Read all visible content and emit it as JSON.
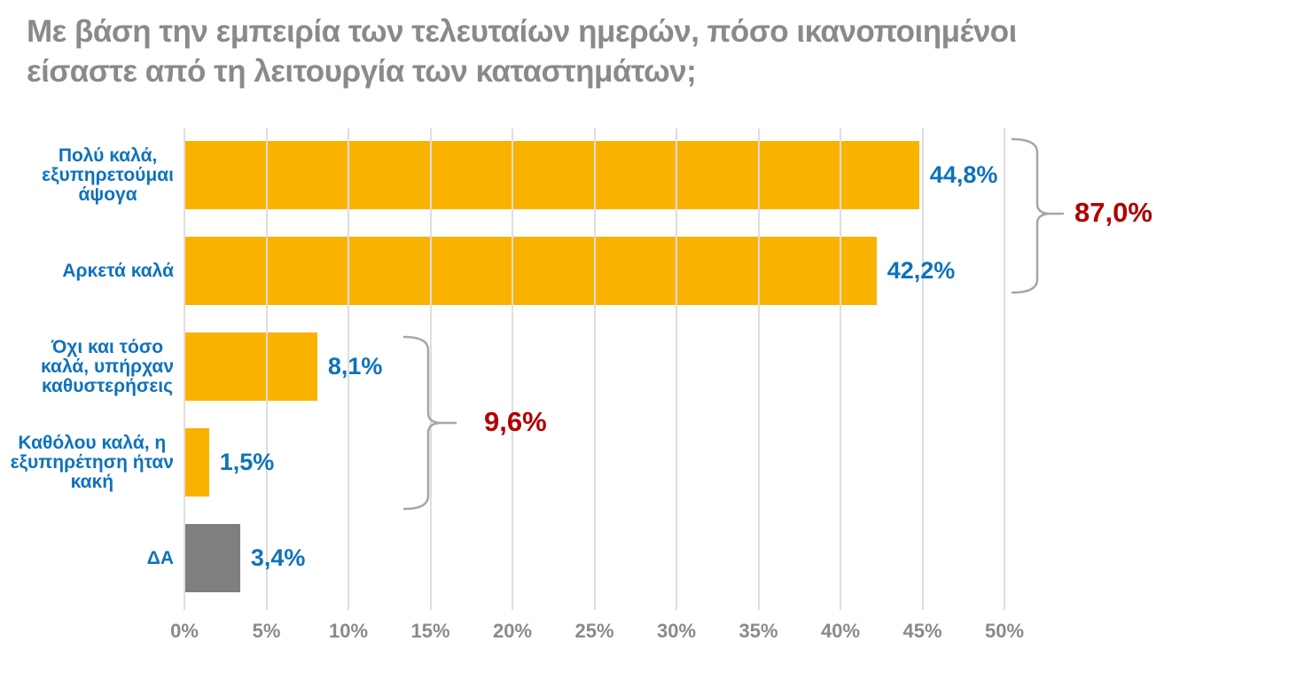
{
  "title": "Με βάση την εμπειρία των τελευταίων ημερών, πόσο ικανοποιημένοι\nείσαστε από τη λειτουργία των καταστημάτων;",
  "colors": {
    "bar_orange": "#F9B200",
    "bar_gray": "#7F7F7F",
    "value_blue": "#0F72BC",
    "group_red": "#B00000",
    "title_gray": "#8A8A8A",
    "brace_gray": "#A6A6A6",
    "gridline": "#DEDEDE"
  },
  "chart_data": {
    "type": "bar",
    "orientation": "horizontal",
    "title": "Με βάση την εμπειρία των τελευταίων ημερών, πόσο ικανοποιημένοι είσαστε από τη λειτουργία των καταστημάτων;",
    "xlabel": "",
    "ylabel": "",
    "x_axis": {
      "min": 0,
      "max": 50,
      "grid": true,
      "ticks": [
        "0%",
        "5%",
        "10%",
        "15%",
        "20%",
        "25%",
        "30%",
        "35%",
        "40%",
        "45%",
        "50%"
      ]
    },
    "rows": [
      {
        "label": "Πολύ καλά,\nεξυπηρετούμαι\nάψογα",
        "value": 44.8,
        "value_label": "44,8%",
        "color": "#F9B200"
      },
      {
        "label": "Αρκετά καλά",
        "value": 42.2,
        "value_label": "42,2%",
        "color": "#F9B200"
      },
      {
        "label": "Όχι και τόσο\nκαλά, υπήρχαν\nκαθυστερήσεις",
        "value": 8.1,
        "value_label": "8,1%",
        "color": "#F9B200"
      },
      {
        "label": "Καθόλου καλά, η\nεξυπηρέτηση ήταν\nκακή",
        "value": 1.5,
        "value_label": "1,5%",
        "color": "#F9B200"
      },
      {
        "label": "ΔΑ",
        "value": 3.4,
        "value_label": "3,4%",
        "color": "#7F7F7F"
      }
    ],
    "groups": [
      {
        "label": "87,0%",
        "sum_of_rows": [
          0,
          1
        ]
      },
      {
        "label": "9,6%",
        "sum_of_rows": [
          2,
          3
        ]
      }
    ]
  }
}
